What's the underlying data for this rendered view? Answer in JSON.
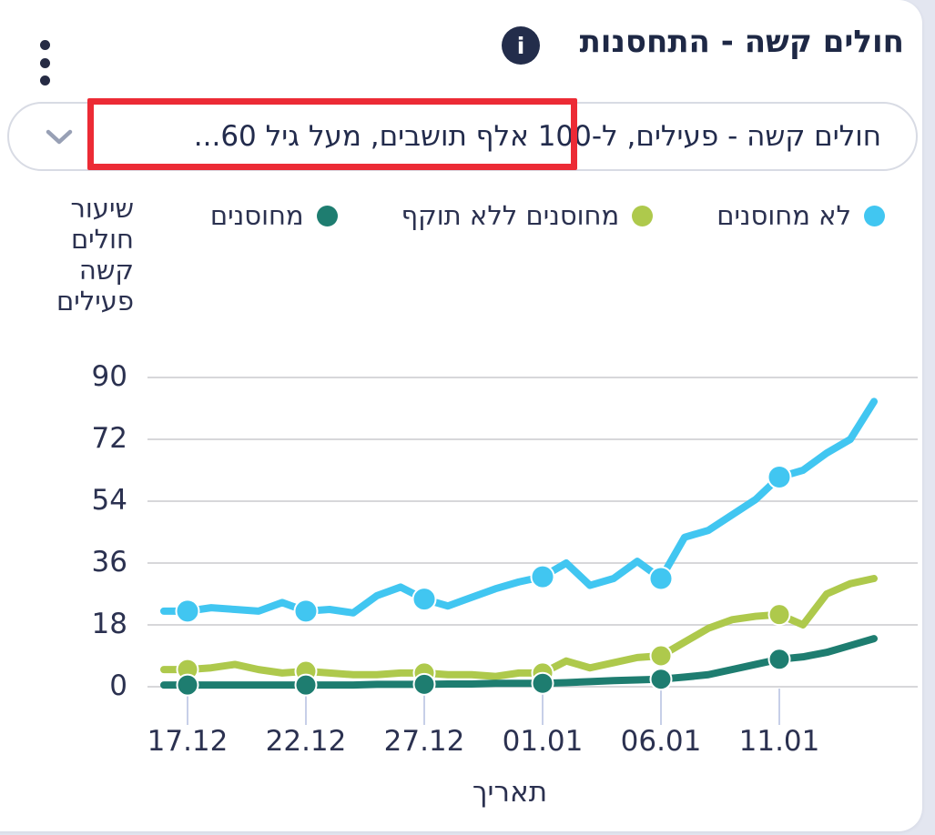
{
  "header": {
    "title": "חולים קשה - התחסנות",
    "info_glyph": "i"
  },
  "filter": {
    "value": "חולים קשה - פעילים, ל-100 אלף תושבים, מעל גיל 60..."
  },
  "annotation": {
    "type": "red-rectangle-highlight",
    "color": "#ec2b35"
  },
  "legend": [
    {
      "id": "unvaccinated",
      "label": "לא מחוסנים",
      "color": "#41c6f1"
    },
    {
      "id": "vaccinated-expired",
      "label": "מחוסנים ללא תוקף",
      "color": "#aec94c"
    },
    {
      "id": "vaccinated",
      "label": "מחוסנים",
      "color": "#1e7d70"
    }
  ],
  "chart_data": {
    "type": "line",
    "title": "חולים קשה - התחסנות",
    "ylabel": "שיעור\nחולים\nקשה\nפעילים",
    "xlabel": "תאריך",
    "ylim": [
      0,
      90
    ],
    "yticks": [
      90,
      72,
      54,
      36,
      18,
      0
    ],
    "grid": "horizontal",
    "legend_position": "top",
    "xtick_labels": [
      "17.12",
      "22.12",
      "27.12",
      "01.01",
      "06.01",
      "11.01"
    ],
    "xtick_indices": [
      0,
      5,
      10,
      15,
      20,
      25
    ],
    "x": [
      "17.12",
      "18.12",
      "19.12",
      "20.12",
      "21.12",
      "22.12",
      "23.12",
      "24.12",
      "25.12",
      "26.12",
      "27.12",
      "28.12",
      "29.12",
      "30.12",
      "31.12",
      "01.01",
      "02.01",
      "03.01",
      "04.01",
      "05.01",
      "06.01",
      "07.01",
      "08.01",
      "09.01",
      "10.01",
      "11.01",
      "12.01",
      "13.01",
      "14.01",
      "15.01"
    ],
    "series": [
      {
        "id": "unvaccinated",
        "name": "לא מחוסנים",
        "color": "#41c6f1",
        "values": [
          22,
          23,
          22.5,
          22,
          24.5,
          22,
          22.5,
          21.5,
          26.5,
          29,
          25.5,
          23.5,
          26,
          28.5,
          30.5,
          32,
          36,
          29.5,
          31.5,
          36.5,
          31.5,
          43.5,
          45.5,
          50,
          54.5,
          61,
          63,
          68,
          72,
          83
        ]
      },
      {
        "id": "vaccinated-expired",
        "name": "מחוסנים ללא תוקף",
        "color": "#aec94c",
        "values": [
          5,
          5.5,
          6.5,
          5,
          4,
          4.5,
          4,
          3.5,
          3.5,
          4,
          4,
          3.5,
          3.5,
          3,
          4,
          4,
          7.5,
          5.5,
          7,
          8.5,
          9,
          13,
          17,
          19.5,
          20.5,
          21,
          18,
          27,
          30,
          31.5
        ]
      },
      {
        "id": "vaccinated",
        "name": "מחוסנים",
        "color": "#1e7d70",
        "values": [
          0.5,
          0.5,
          0.5,
          0.5,
          0.5,
          0.5,
          0.5,
          0.5,
          0.7,
          0.7,
          0.7,
          0.8,
          0.8,
          1,
          1,
          1,
          1.2,
          1.5,
          1.8,
          2,
          2.2,
          2.8,
          3.5,
          5,
          6.5,
          8,
          8.7,
          10,
          12,
          14
        ]
      }
    ]
  },
  "colors": {
    "page_bg": "#e3e6f0",
    "card_bg": "#ffffff",
    "navy": "#222c4a",
    "grid": "#d7d7da",
    "tick": "#c7cfe8",
    "border": "#d8dbe4",
    "chevron": "#98a0b5",
    "red_annotation": "#ec2b35"
  }
}
